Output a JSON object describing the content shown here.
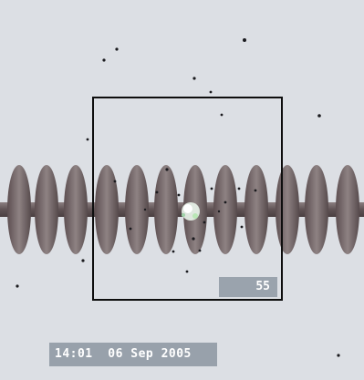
{
  "overlay": {
    "frame_counter": "55",
    "timestamp": "14:01  06 Sep 2005"
  },
  "colors": {
    "background": "#dcdfe4",
    "insulator": "#7a6d6e",
    "box": "#0e0e0e",
    "overlay_bg": "#98a1ab",
    "overlay_text": "#ffffff"
  }
}
